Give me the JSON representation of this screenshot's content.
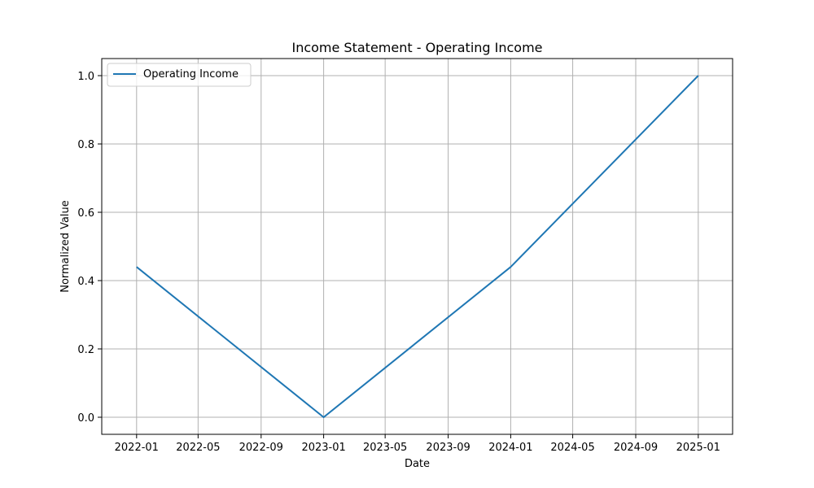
{
  "chart_data": {
    "type": "line",
    "title": "Income Statement - Operating Income",
    "xlabel": "Date",
    "ylabel": "Normalized Value",
    "x_tick_labels": [
      "2022-01",
      "2022-05",
      "2022-09",
      "2023-01",
      "2023-05",
      "2023-09",
      "2024-01",
      "2024-05",
      "2024-09",
      "2025-01"
    ],
    "y_ticks": [
      0.0,
      0.2,
      0.4,
      0.6,
      0.8,
      1.0
    ],
    "y_tick_labels": [
      "0.0",
      "0.2",
      "0.4",
      "0.6",
      "0.8",
      "1.0"
    ],
    "ylim": [
      -0.05,
      1.05
    ],
    "xlim": [
      "2021-10-25",
      "2025-03-09"
    ],
    "grid": true,
    "legend_position": "top-left",
    "series": [
      {
        "name": "Operating Income",
        "color": "#1f77b4",
        "x": [
          "2022-01-01",
          "2023-01-01",
          "2024-01-01",
          "2025-01-01"
        ],
        "y": [
          0.44,
          0.0,
          0.44,
          1.0
        ]
      }
    ]
  }
}
